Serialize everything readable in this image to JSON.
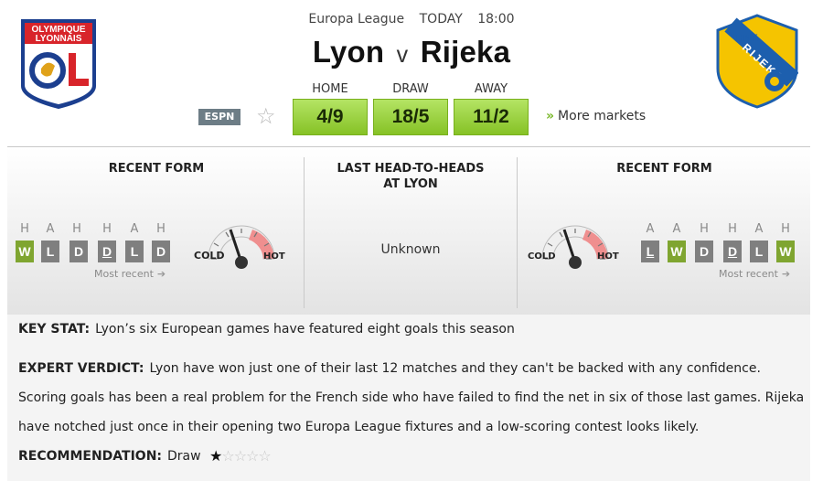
{
  "match": {
    "competition": "Europa League",
    "day": "TODAY",
    "time": "18:00",
    "home": "Lyon",
    "vs": "v",
    "away": "Rijeka"
  },
  "odds": {
    "home_label": "HOME",
    "draw_label": "DRAW",
    "away_label": "AWAY",
    "home": "4/9",
    "draw": "18/5",
    "away": "11/2"
  },
  "broadcaster": "ESPN",
  "more_markets": "More markets",
  "logos": {
    "home_text_1": "OLYMPIQUE",
    "home_text_2": "LYONNAIS",
    "home_text_3": "OL",
    "away_text_1": "HNK",
    "away_text_2": "RIJEKA"
  },
  "home_form": {
    "title": "RECENT FORM",
    "venues": [
      "H",
      "A",
      "H",
      "H",
      "A",
      "H"
    ],
    "results": [
      "W",
      "L",
      "D",
      "D",
      "L",
      "D"
    ],
    "most_recent": "Most recent",
    "cold": "COLD",
    "hot": "HOT"
  },
  "head_to_head": {
    "title_1": "LAST HEAD-TO-HEADS",
    "title_2": "AT LYON",
    "value": "Unknown"
  },
  "away_form": {
    "title": "RECENT FORM",
    "venues": [
      "A",
      "A",
      "H",
      "H",
      "A",
      "H"
    ],
    "results": [
      "L",
      "W",
      "D",
      "D",
      "L",
      "W"
    ],
    "most_recent": "Most recent",
    "cold": "COLD",
    "hot": "HOT"
  },
  "key_stat": {
    "label": "KEY STAT:",
    "text": "Lyon’s six European games have featured eight goals this season"
  },
  "verdict": {
    "label": "EXPERT VERDICT:",
    "text": "Lyon have won just one of their last 12 matches and they can't be backed with any confidence. Scoring goals has been a real problem for the French side who have failed to find the net in six of those last games. Rijeka have notched just once in their opening two Europa League fixtures and a low-scoring contest looks likely."
  },
  "recommendation": {
    "label": "RECOMMENDATION:",
    "pick": "Draw",
    "stars": 1,
    "max_stars": 5
  },
  "colors": {
    "odds_green": "#9fd443",
    "win_green": "#7fa530",
    "loss_grey": "#7f7f7f",
    "rijeka_yellow": "#f5c400",
    "rijeka_blue": "#1d5fae",
    "lyon_red": "#d8242a",
    "lyon_blue": "#1c3f8f"
  }
}
